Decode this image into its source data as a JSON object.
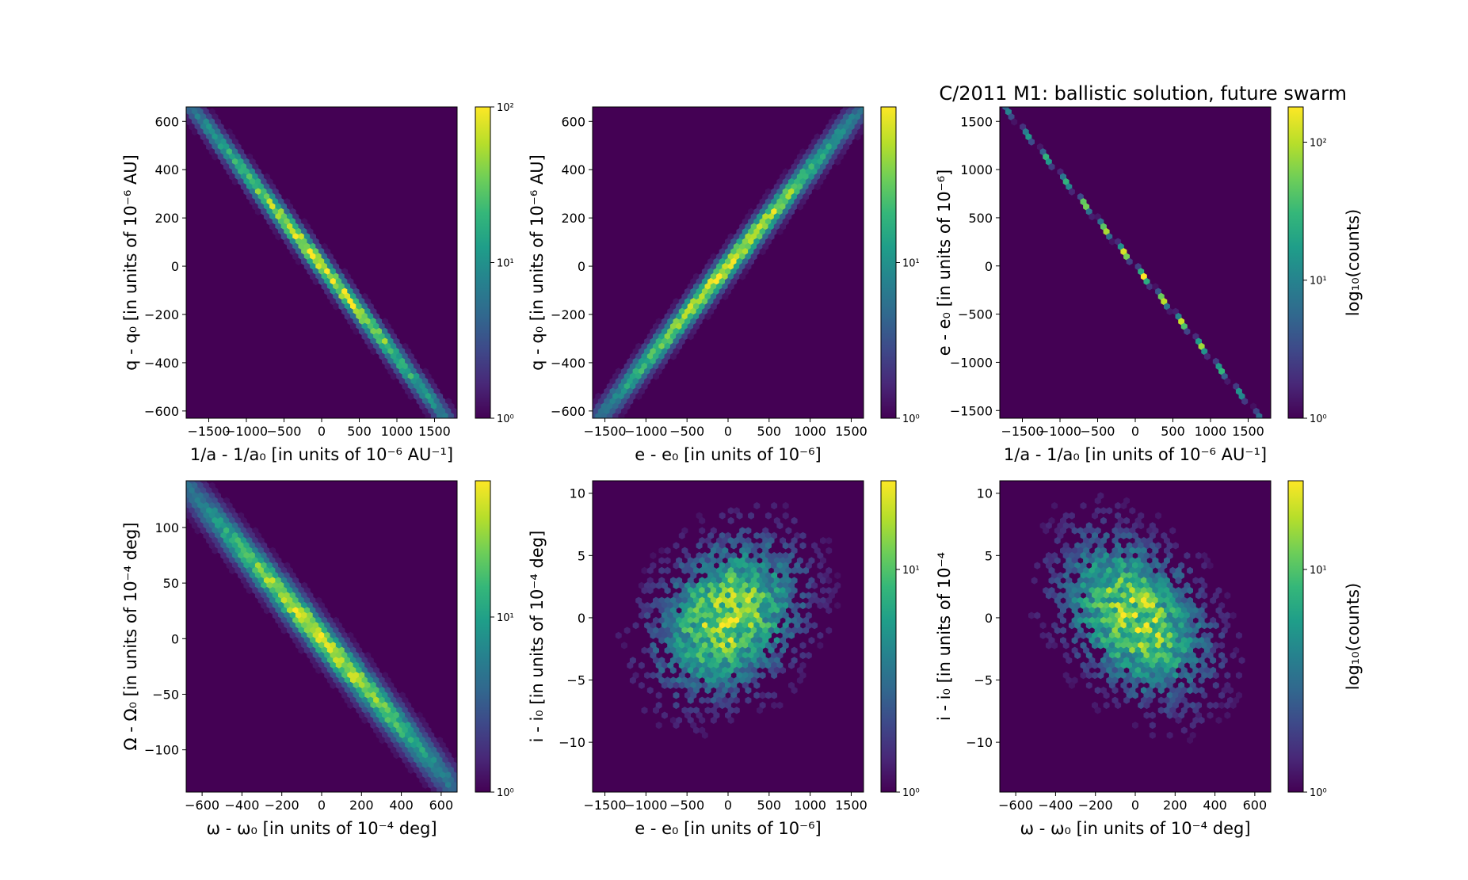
{
  "figure": {
    "title": "C/2011 M1: ballistic solution, future swarm"
  },
  "colormap": [
    "#440154",
    "#482878",
    "#3e4989",
    "#31688e",
    "#26828e",
    "#1f9e89",
    "#35b779",
    "#6ece58",
    "#b5de2b",
    "#fde725"
  ],
  "chart_data": [
    {
      "type": "heatmap",
      "subtype": "hexbin",
      "xlabel": "1/a - 1/a₀ [in units of 10⁻⁶ AU⁻¹]",
      "ylabel": "q - q₀ [in units of 10⁻⁶ AU]",
      "xlim": [
        -1800,
        1800
      ],
      "ylim": [
        -630,
        660
      ],
      "xticks": [
        -1500,
        -1000,
        -500,
        0,
        500,
        1000,
        1500
      ],
      "xtick_labels": [
        "−1500",
        "−1000",
        "−500",
        "0",
        "500",
        "1000",
        "1500"
      ],
      "yticks": [
        -600,
        -400,
        -200,
        0,
        200,
        400,
        600
      ],
      "ytick_labels": [
        "−600",
        "−400",
        "−200",
        "0",
        "200",
        "400",
        "600"
      ],
      "correlation": "negative",
      "trend": {
        "slope": -0.38,
        "spread": 0.03
      },
      "colorbar": {
        "scale": "log",
        "min": 1,
        "max": 100,
        "ticks": [
          "10⁰",
          "10¹",
          "10²"
        ],
        "label": ""
      }
    },
    {
      "type": "heatmap",
      "subtype": "hexbin",
      "xlabel": "e - e₀ [in units of 10⁻⁶]",
      "ylabel": "q - q₀ [in units of 10⁻⁶ AU]",
      "xlim": [
        -1650,
        1650
      ],
      "ylim": [
        -630,
        660
      ],
      "xticks": [
        -1500,
        -1000,
        -500,
        0,
        500,
        1000,
        1500
      ],
      "xtick_labels": [
        "−1500",
        "−1000",
        "−500",
        "0",
        "500",
        "1000",
        "1500"
      ],
      "yticks": [
        -600,
        -400,
        -200,
        0,
        200,
        400,
        600
      ],
      "ytick_labels": [
        "−600",
        "−400",
        "−200",
        "0",
        "200",
        "400",
        "600"
      ],
      "correlation": "positive",
      "trend": {
        "slope": 0.4,
        "spread": 0.035
      },
      "colorbar": {
        "scale": "log",
        "min": 1,
        "max": 100,
        "ticks": [
          "10⁰",
          "10¹"
        ],
        "label": ""
      }
    },
    {
      "type": "heatmap",
      "subtype": "hexbin",
      "xlabel": "1/a - 1/a₀ [in units of 10⁻⁶ AU⁻¹]",
      "ylabel": "e - e₀ [in units of 10⁻⁶]",
      "xlim": [
        -1800,
        1800
      ],
      "ylim": [
        -1580,
        1650
      ],
      "xticks": [
        -1500,
        -1000,
        -500,
        0,
        500,
        1000,
        1500
      ],
      "xtick_labels": [
        "−1500",
        "−1000",
        "−500",
        "0",
        "500",
        "1000",
        "1500"
      ],
      "yticks": [
        -1500,
        -1000,
        -500,
        0,
        500,
        1000,
        1500
      ],
      "ytick_labels": [
        "−1500",
        "−1000",
        "−500",
        "0",
        "500",
        "1000",
        "1500"
      ],
      "correlation": "negative",
      "trend": {
        "slope": -0.95,
        "spread": 0.005
      },
      "colorbar": {
        "scale": "log",
        "min": 1,
        "max": 180,
        "ticks": [
          "10⁰",
          "10¹",
          "10²"
        ],
        "label": "log₁₀(counts)"
      }
    },
    {
      "type": "heatmap",
      "subtype": "hexbin",
      "xlabel": "ω - ω₀ [in units of 10⁻⁴ deg]",
      "ylabel": "Ω - Ω₀ [in units of 10⁻⁴ deg]",
      "xlim": [
        -680,
        680
      ],
      "ylim": [
        -138,
        142
      ],
      "xticks": [
        -600,
        -400,
        -200,
        0,
        200,
        400,
        600
      ],
      "xtick_labels": [
        "−600",
        "−400",
        "−200",
        "0",
        "200",
        "400",
        "600"
      ],
      "yticks": [
        -100,
        -50,
        0,
        50,
        100
      ],
      "ytick_labels": [
        "−100",
        "−50",
        "0",
        "50",
        "100"
      ],
      "correlation": "negative",
      "trend": {
        "slope": -0.2,
        "spread": 0.045
      },
      "colorbar": {
        "scale": "log",
        "min": 1,
        "max": 60,
        "ticks": [
          "10⁰",
          "10¹"
        ],
        "label": ""
      }
    },
    {
      "type": "heatmap",
      "subtype": "hexbin",
      "xlabel": "e - e₀ [in units of 10⁻⁶]",
      "ylabel": "i - i₀ [in units of 10⁻⁴ deg]",
      "xlim": [
        -1650,
        1650
      ],
      "ylim": [
        -14,
        11
      ],
      "xticks": [
        -1500,
        -1000,
        -500,
        0,
        500,
        1000,
        1500
      ],
      "xtick_labels": [
        "−1500",
        "−1000",
        "−500",
        "0",
        "500",
        "1000",
        "1500"
      ],
      "yticks": [
        -10,
        -5,
        0,
        5
      ],
      "ytick_labels": [
        "−10",
        "−5",
        "0",
        "5"
      ],
      "extra_yticks": [
        10
      ],
      "extra_ytick_labels": [
        "10"
      ],
      "correlation": "weak positive",
      "trend": {
        "slope": 0.0018,
        "spread": 2.8
      },
      "colorbar": {
        "scale": "log",
        "min": 1,
        "max": 25,
        "ticks": [
          "10⁰",
          "10¹"
        ],
        "label": ""
      }
    },
    {
      "type": "heatmap",
      "subtype": "hexbin",
      "xlabel": "ω - ω₀ [in units of 10⁻⁴ deg]",
      "ylabel": "i - i₀ [in units of 10⁻⁴",
      "xlim": [
        -680,
        680
      ],
      "ylim": [
        -14,
        11
      ],
      "xticks": [
        -600,
        -400,
        -200,
        0,
        200,
        400,
        600
      ],
      "xtick_labels": [
        "−600",
        "−400",
        "−200",
        "0",
        "200",
        "400",
        "600"
      ],
      "yticks": [
        -10,
        -5,
        0,
        5,
        10
      ],
      "ytick_labels": [
        "−10",
        "−5",
        "0",
        "5",
        "10"
      ],
      "correlation": "weak negative",
      "trend": {
        "slope": -0.0065,
        "spread": 2.8
      },
      "colorbar": {
        "scale": "log",
        "min": 1,
        "max": 25,
        "ticks": [
          "10⁰",
          "10¹"
        ],
        "label": "log₁₀(counts)"
      }
    }
  ]
}
